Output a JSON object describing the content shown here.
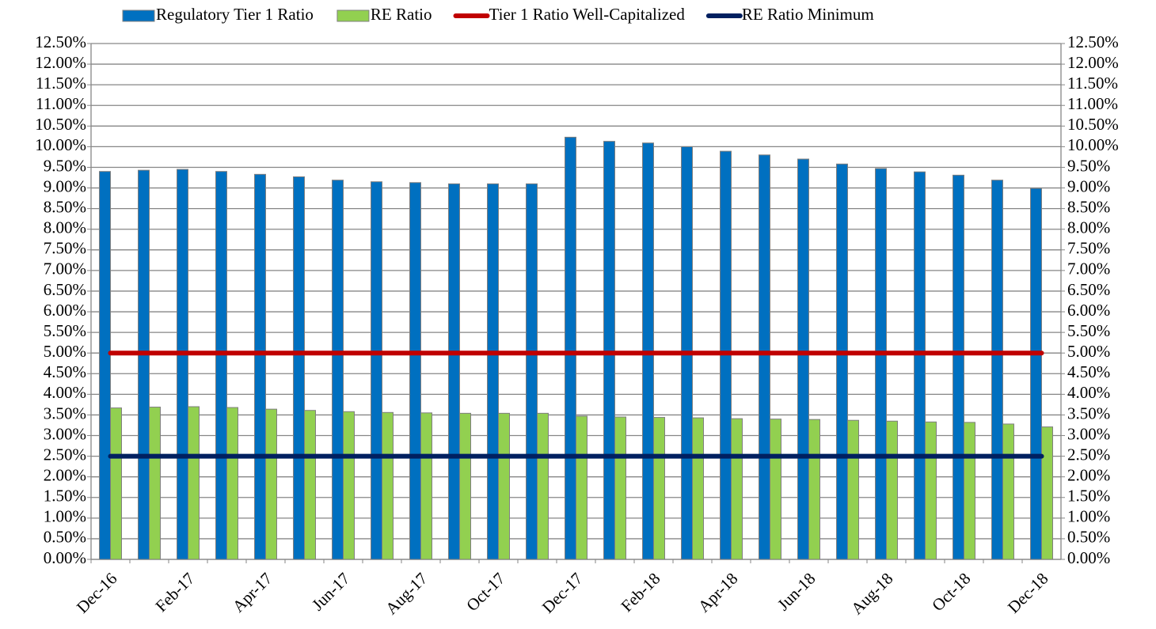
{
  "chart_data": {
    "type": "bar",
    "categories": [
      "Dec-16",
      null,
      "Feb-17",
      null,
      "Apr-17",
      null,
      "Jun-17",
      null,
      "Aug-17",
      null,
      "Oct-17",
      null,
      "Dec-17",
      null,
      "Feb-18",
      null,
      "Apr-18",
      null,
      "Jun-18",
      null,
      "Aug-18",
      null,
      "Oct-18",
      null,
      "Dec-18"
    ],
    "series": [
      {
        "name": "Regulatory Tier 1 Ratio",
        "type": "bar",
        "color": "#0070c0",
        "values": [
          9.4,
          9.43,
          9.45,
          9.4,
          9.33,
          9.27,
          9.19,
          9.15,
          9.13,
          9.1,
          9.1,
          9.1,
          10.23,
          10.13,
          10.09,
          10.0,
          9.89,
          9.8,
          9.7,
          9.58,
          9.47,
          9.39,
          9.31,
          9.19,
          8.99
        ]
      },
      {
        "name": "RE Ratio",
        "type": "bar",
        "color": "#92d050",
        "values": [
          3.67,
          3.69,
          3.7,
          3.68,
          3.64,
          3.61,
          3.58,
          3.56,
          3.55,
          3.54,
          3.54,
          3.54,
          3.47,
          3.45,
          3.44,
          3.43,
          3.41,
          3.4,
          3.39,
          3.37,
          3.35,
          3.33,
          3.32,
          3.28,
          3.21
        ]
      },
      {
        "name": "Tier 1 Ratio Well-Capitalized",
        "type": "line",
        "color": "#c00000",
        "values": [
          5,
          5,
          5,
          5,
          5,
          5,
          5,
          5,
          5,
          5,
          5,
          5,
          5,
          5,
          5,
          5,
          5,
          5,
          5,
          5,
          5,
          5,
          5,
          5,
          5
        ]
      },
      {
        "name": "RE Ratio Minimum",
        "type": "line",
        "color": "#002060",
        "values": [
          2.5,
          2.5,
          2.5,
          2.5,
          2.5,
          2.5,
          2.5,
          2.5,
          2.5,
          2.5,
          2.5,
          2.5,
          2.5,
          2.5,
          2.5,
          2.5,
          2.5,
          2.5,
          2.5,
          2.5,
          2.5,
          2.5,
          2.5,
          2.5,
          2.5
        ]
      }
    ],
    "ylim": [
      0,
      12.5
    ],
    "yticks": [
      {
        "value": 0,
        "label": "0.00%"
      },
      {
        "value": 0.5,
        "label": "0.50%"
      },
      {
        "value": 1,
        "label": "1.00%"
      },
      {
        "value": 1.5,
        "label": "1.50%"
      },
      {
        "value": 2,
        "label": "2.00%"
      },
      {
        "value": 2.5,
        "label": "2.50%"
      },
      {
        "value": 3,
        "label": "3.00%"
      },
      {
        "value": 3.5,
        "label": "3.50%"
      },
      {
        "value": 4,
        "label": "4.00%"
      },
      {
        "value": 4.5,
        "label": "4.50%"
      },
      {
        "value": 5,
        "label": "5.00%"
      },
      {
        "value": 5.5,
        "label": "5.50%"
      },
      {
        "value": 6,
        "label": "6.00%"
      },
      {
        "value": 6.5,
        "label": "6.50%"
      },
      {
        "value": 7,
        "label": "7.00%"
      },
      {
        "value": 7.5,
        "label": "7.50%"
      },
      {
        "value": 8,
        "label": "8.00%"
      },
      {
        "value": 8.5,
        "label": "8.50%"
      },
      {
        "value": 9,
        "label": "9.00%"
      },
      {
        "value": 9.5,
        "label": "9.50%"
      },
      {
        "value": 10,
        "label": "10.00%"
      },
      {
        "value": 10.5,
        "label": "10.50%"
      },
      {
        "value": 11,
        "label": "11.00%"
      },
      {
        "value": 11.5,
        "label": "11.50%"
      },
      {
        "value": 12,
        "label": "12.00%"
      },
      {
        "value": 12.5,
        "label": "12.50%"
      }
    ],
    "y2lim": [
      0,
      12.5
    ],
    "y2ticks": [
      {
        "value": 0,
        "label": "0.00%"
      },
      {
        "value": 0.5,
        "label": "0.50%"
      },
      {
        "value": 1,
        "label": "1.00%"
      },
      {
        "value": 1.5,
        "label": "1.50%"
      },
      {
        "value": 2,
        "label": "2.00%"
      },
      {
        "value": 2.5,
        "label": "2.50%"
      },
      {
        "value": 3,
        "label": "3.00%"
      },
      {
        "value": 3.5,
        "label": "3.50%"
      },
      {
        "value": 4,
        "label": "4.00%"
      },
      {
        "value": 4.5,
        "label": "4.50%"
      },
      {
        "value": 5,
        "label": "5.00%"
      },
      {
        "value": 5.5,
        "label": "5.50%"
      },
      {
        "value": 6,
        "label": "6.00%"
      },
      {
        "value": 6.5,
        "label": "6.50%"
      },
      {
        "value": 7,
        "label": "7.00%"
      },
      {
        "value": 7.5,
        "label": "7.50%"
      },
      {
        "value": 8,
        "label": "8.00%"
      },
      {
        "value": 8.5,
        "label": "8.50%"
      },
      {
        "value": 9,
        "label": "9.00%"
      },
      {
        "value": 9.5,
        "label": "9.50%"
      },
      {
        "value": 10,
        "label": "10.00%"
      },
      {
        "value": 10.5,
        "label": "10.50%"
      },
      {
        "value": 11,
        "label": "11.00%"
      },
      {
        "value": 11.5,
        "label": "11.50%"
      },
      {
        "value": 12,
        "label": "12.00%"
      },
      {
        "value": 12.5,
        "label": "12.50%"
      }
    ],
    "grid": true,
    "legend": "top"
  }
}
